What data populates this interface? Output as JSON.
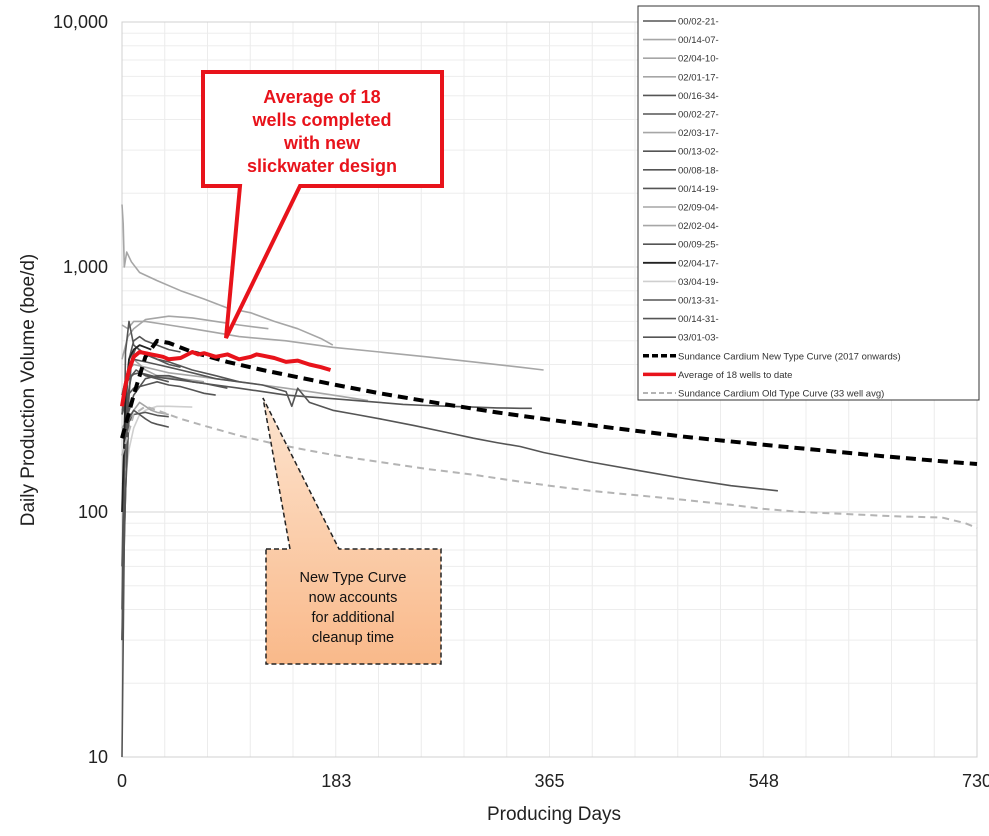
{
  "chart_data": {
    "type": "line",
    "xlabel": "Producing Days",
    "ylabel": "Daily Production Volume (boe/d)",
    "xlim": [
      0,
      730
    ],
    "ylim": [
      10,
      10000
    ],
    "y_scale": "log",
    "x_ticks": [
      0,
      183,
      365,
      548,
      730
    ],
    "x_tick_labels": [
      "0",
      "183",
      "365",
      "548",
      "730"
    ],
    "y_ticks": [
      10,
      100,
      1000,
      10000
    ],
    "y_tick_labels": [
      "10",
      "100",
      "1,000",
      "10,000"
    ],
    "grid": true,
    "legend_position": "top-right",
    "colors": {
      "well_dark": "#555555",
      "well_light": "#a6a6a6",
      "new_type_curve": "#000000",
      "average": "#e8131b",
      "old_type_curve": "#b4b4b4",
      "callout_fill": "#fbc79c"
    },
    "series": [
      {
        "name": "00/02-21-",
        "style": "dark",
        "x": [
          0,
          2,
          5,
          8,
          12,
          20,
          30,
          40,
          50
        ],
        "y": [
          10,
          80,
          250,
          420,
          470,
          440,
          420,
          400,
          390
        ]
      },
      {
        "name": "00/14-07-",
        "style": "light",
        "x": [
          0,
          1,
          2,
          4,
          8,
          15,
          30,
          50,
          70,
          90,
          110,
          130,
          150,
          170,
          180
        ],
        "y": [
          1800,
          1500,
          1000,
          1150,
          1050,
          950,
          880,
          800,
          740,
          680,
          650,
          600,
          560,
          510,
          480
        ]
      },
      {
        "name": "02/04-10-",
        "style": "light",
        "x": [
          0,
          5,
          10,
          20,
          40,
          60,
          80,
          100,
          140,
          180,
          220,
          260,
          300,
          340,
          360
        ],
        "y": [
          580,
          560,
          600,
          600,
          580,
          560,
          540,
          520,
          500,
          470,
          450,
          430,
          410,
          390,
          380
        ]
      },
      {
        "name": "02/01-17-",
        "style": "light",
        "x": [
          0,
          5,
          10,
          20,
          40,
          60,
          80,
          100,
          125
        ],
        "y": [
          420,
          520,
          560,
          610,
          630,
          620,
          600,
          580,
          560
        ]
      },
      {
        "name": "00/16-34-",
        "style": "dark",
        "x": [
          0,
          3,
          6,
          10,
          20,
          30,
          40,
          60,
          80,
          100,
          120,
          140,
          145,
          150,
          160,
          180,
          200,
          220,
          250,
          280,
          300,
          320,
          340,
          360,
          400,
          440,
          480,
          520,
          560
        ],
        "y": [
          40,
          450,
          600,
          480,
          440,
          420,
          410,
          380,
          360,
          340,
          330,
          310,
          270,
          320,
          280,
          260,
          250,
          240,
          225,
          210,
          200,
          192,
          185,
          175,
          160,
          148,
          137,
          128,
          122
        ]
      },
      {
        "name": "00/02-27-",
        "style": "dark",
        "x": [
          0,
          2,
          5,
          8,
          12,
          20,
          30,
          40
        ],
        "y": [
          30,
          150,
          300,
          360,
          380,
          360,
          350,
          340
        ]
      },
      {
        "name": "02/03-17-",
        "style": "light",
        "x": [
          0,
          5,
          10,
          20,
          30,
          40,
          60,
          80,
          100,
          120,
          140,
          160,
          180,
          200,
          210
        ],
        "y": [
          300,
          380,
          400,
          390,
          380,
          370,
          360,
          350,
          340,
          330,
          320,
          310,
          300,
          290,
          285
        ]
      },
      {
        "name": "00/13-02-",
        "style": "dark",
        "x": [
          0,
          5,
          10,
          20,
          30,
          40
        ],
        "y": [
          200,
          230,
          250,
          255,
          248,
          245
        ]
      },
      {
        "name": "00/08-18-",
        "style": "dark",
        "x": [
          0,
          5,
          10,
          20,
          30,
          40,
          50,
          60,
          70,
          80
        ],
        "y": [
          250,
          300,
          320,
          330,
          340,
          330,
          325,
          315,
          305,
          300
        ]
      },
      {
        "name": "00/14-19-",
        "style": "dark",
        "x": [
          0,
          5,
          10,
          20,
          30,
          40,
          50,
          60,
          80,
          100
        ],
        "y": [
          300,
          380,
          420,
          410,
          400,
          390,
          380,
          370,
          350,
          340
        ]
      },
      {
        "name": "02/09-04-",
        "style": "light",
        "x": [
          0,
          5,
          10,
          15,
          20,
          25,
          30,
          40
        ],
        "y": [
          220,
          240,
          260,
          280,
          270,
          260,
          255,
          250
        ]
      },
      {
        "name": "02/02-04-",
        "style": "light",
        "x": [
          0,
          5,
          10,
          15,
          20,
          25,
          30,
          40,
          50,
          60,
          70
        ],
        "y": [
          260,
          380,
          420,
          400,
          380,
          370,
          360,
          355,
          350,
          345,
          340
        ]
      },
      {
        "name": "00/09-25-",
        "style": "dark",
        "x": [
          0,
          5,
          10,
          20,
          30,
          40,
          50,
          60,
          80,
          100,
          120,
          140,
          160,
          180,
          200,
          220,
          240,
          260,
          280,
          300,
          320,
          340,
          350
        ],
        "y": [
          200,
          250,
          300,
          350,
          360,
          360,
          350,
          340,
          330,
          320,
          310,
          300,
          295,
          290,
          285,
          280,
          275,
          272,
          270,
          268,
          266,
          265,
          265
        ]
      },
      {
        "name": "02/04-17-",
        "style": "darkest",
        "x": [
          0,
          3,
          6,
          10,
          15,
          20,
          25
        ],
        "y": [
          100,
          300,
          420,
          460,
          480,
          470,
          460
        ]
      },
      {
        "name": "03/04-19-",
        "style": "faint",
        "x": [
          0,
          2,
          4,
          6,
          10,
          15,
          20,
          30,
          40,
          60
        ],
        "y": [
          130,
          140,
          150,
          180,
          220,
          250,
          260,
          270,
          270,
          268
        ]
      },
      {
        "name": "00/13-31-",
        "style": "dark",
        "x": [
          0,
          3,
          6,
          10,
          15,
          20,
          25,
          30,
          35,
          40
        ],
        "y": [
          30,
          120,
          240,
          260,
          250,
          240,
          232,
          228,
          225,
          222
        ]
      },
      {
        "name": "00/14-31-",
        "style": "dark",
        "x": [
          0,
          3,
          6,
          10,
          15,
          20,
          25,
          30,
          40,
          50,
          60,
          70,
          90
        ],
        "y": [
          250,
          330,
          350,
          365,
          370,
          365,
          360,
          355,
          350,
          345,
          340,
          335,
          320
        ]
      },
      {
        "name": "03/01-03-",
        "style": "dark",
        "x": [
          0,
          3,
          6,
          10,
          15,
          20,
          30,
          40,
          50
        ],
        "y": [
          60,
          250,
          420,
          500,
          520,
          500,
          480,
          460,
          450
        ]
      },
      {
        "name": "Sundance Cardium New Type Curve (2017 onwards)",
        "style": "new",
        "x": [
          0,
          10,
          20,
          30,
          40,
          60,
          90,
          120,
          150,
          183,
          220,
          270,
          320,
          365,
          420,
          480,
          548,
          600,
          650,
          700,
          730
        ],
        "y": [
          200,
          300,
          430,
          500,
          490,
          450,
          410,
          380,
          355,
          330,
          305,
          278,
          255,
          238,
          220,
          203,
          188,
          178,
          169,
          161,
          157
        ]
      },
      {
        "name": "Average of 18 wells to date",
        "style": "avg",
        "x": [
          0,
          3,
          6,
          10,
          15,
          20,
          25,
          30,
          35,
          40,
          50,
          60,
          65,
          70,
          80,
          90,
          100,
          110,
          115,
          120,
          130,
          140,
          150,
          160,
          170,
          178
        ],
        "y": [
          270,
          330,
          380,
          430,
          450,
          445,
          440,
          435,
          430,
          420,
          425,
          450,
          440,
          445,
          430,
          440,
          420,
          430,
          440,
          435,
          425,
          410,
          415,
          400,
          390,
          380
        ]
      },
      {
        "name": "Sundance Cardium Old Type Curve (33 well avg)",
        "style": "old",
        "x": [
          0,
          10,
          20,
          30,
          50,
          70,
          100,
          130,
          160,
          183,
          220,
          260,
          300,
          340,
          365,
          400,
          440,
          480,
          520,
          548,
          580,
          620,
          660,
          700,
          720,
          730
        ],
        "y": [
          170,
          250,
          270,
          260,
          240,
          225,
          205,
          190,
          178,
          170,
          160,
          150,
          142,
          133,
          128,
          122,
          117,
          112,
          107,
          103,
          100,
          98,
          96,
          95,
          90,
          86
        ]
      }
    ],
    "annotations": [
      {
        "id": "avg-callout",
        "lines": [
          "Average of 18",
          "wells completed",
          "with new",
          "slickwater design"
        ]
      },
      {
        "id": "type-curve-callout",
        "lines": [
          "New Type Curve",
          "now accounts",
          "for additional",
          "cleanup time"
        ]
      }
    ]
  }
}
